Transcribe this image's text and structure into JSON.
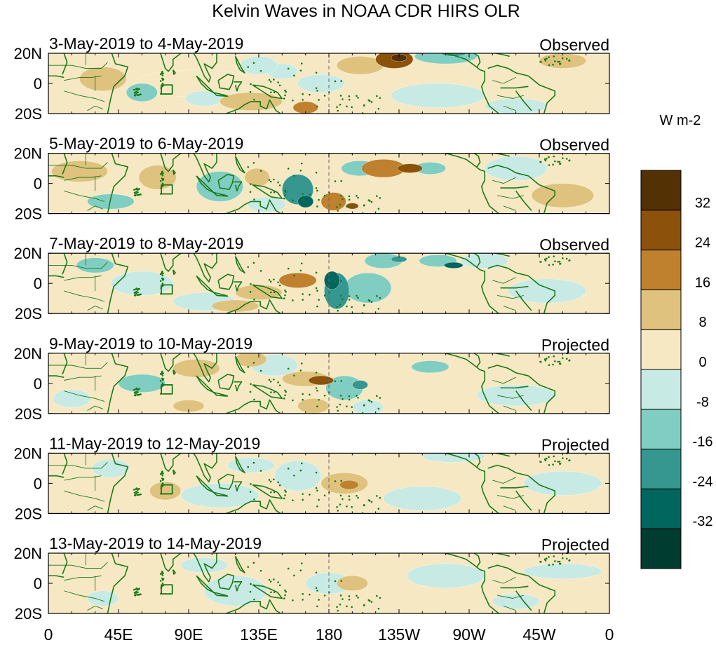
{
  "figure": {
    "title": "Kelvin Waves in NOAA CDR HIRS OLR"
  },
  "panels": [
    {
      "date_range": "3-May-2019 to 4-May-2019",
      "status": "Observed"
    },
    {
      "date_range": "5-May-2019 to 6-May-2019",
      "status": "Observed"
    },
    {
      "date_range": "7-May-2019 to 8-May-2019",
      "status": "Observed"
    },
    {
      "date_range": "9-May-2019 to 10-May-2019",
      "status": "Projected"
    },
    {
      "date_range": "11-May-2019 to 12-May-2019",
      "status": "Projected"
    },
    {
      "date_range": "13-May-2019 to 14-May-2019",
      "status": "Projected"
    }
  ],
  "lat_ticks": [
    "20N",
    "0",
    "20S"
  ],
  "lon_ticks": [
    "0",
    "45E",
    "90E",
    "135E",
    "180",
    "135W",
    "90W",
    "45W",
    "0"
  ],
  "colorbar": {
    "units": "W m-2",
    "levels": [
      "32",
      "24",
      "16",
      "8",
      "0",
      "-8",
      "-16",
      "-24",
      "-32"
    ],
    "colors": [
      "#543005",
      "#8c510a",
      "#bf812d",
      "#dfc27d",
      "#f6e8c3",
      "#c7eae5",
      "#80cdc1",
      "#35978f",
      "#01665e",
      "#003c30"
    ]
  },
  "palette": {
    "coast": "#1a7a1a",
    "dateline": "#666666"
  }
}
